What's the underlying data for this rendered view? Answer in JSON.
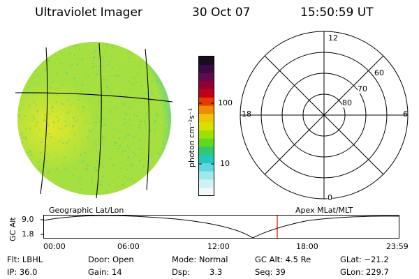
{
  "header": {
    "instrument": "Ultraviolet Imager",
    "date": "30 Oct 07",
    "time": "15:50:59 UT"
  },
  "colorbar": {
    "unit_label": "photon cm⁻²s⁻¹",
    "ticks": [
      "100",
      "10"
    ],
    "colors": [
      "#1a0a22",
      "#3a0a40",
      "#600a50",
      "#900030",
      "#c0001a",
      "#e83a00",
      "#f08a00",
      "#f0c400",
      "#d8e000",
      "#a0e000",
      "#60d820",
      "#30c870",
      "#20c8c0",
      "#60d8e0",
      "#a0e8ec",
      "#d0f2f4",
      "#f0fafa"
    ]
  },
  "geo_map": {
    "label": "Geographic Lat/Lon",
    "disk_colors": {
      "base": "#a6e040",
      "bright": "#e4e82a",
      "edge": "#40c8b0"
    }
  },
  "polar_plot": {
    "label": "Apex MLat/MLT",
    "mlt_labels": {
      "top": "12",
      "left": "18",
      "right": "6",
      "bottom": "0"
    },
    "lat_labels": [
      "60",
      "70",
      "80"
    ]
  },
  "altitude_plot": {
    "ylabel": "GC Alt",
    "yticks": [
      "9.0",
      "1.8"
    ],
    "xticks": [
      "00:00",
      "06:00",
      "12:00",
      "18:00",
      "23:59"
    ],
    "current_time_color": "#e00000"
  },
  "footer": {
    "filter": "Flt: LBHL",
    "door": "Door: Open",
    "mode": "Mode: Normal",
    "gc_alt": "GC Alt: 4.5 Re",
    "glat": "GLat: −21.2",
    "ip": "IP: 36.0",
    "gain": "Gain: 14",
    "dsp_label": "Dsp:",
    "dsp_value": "3.3",
    "seq": "Seq: 39",
    "glon": "GLon: 229.7"
  }
}
